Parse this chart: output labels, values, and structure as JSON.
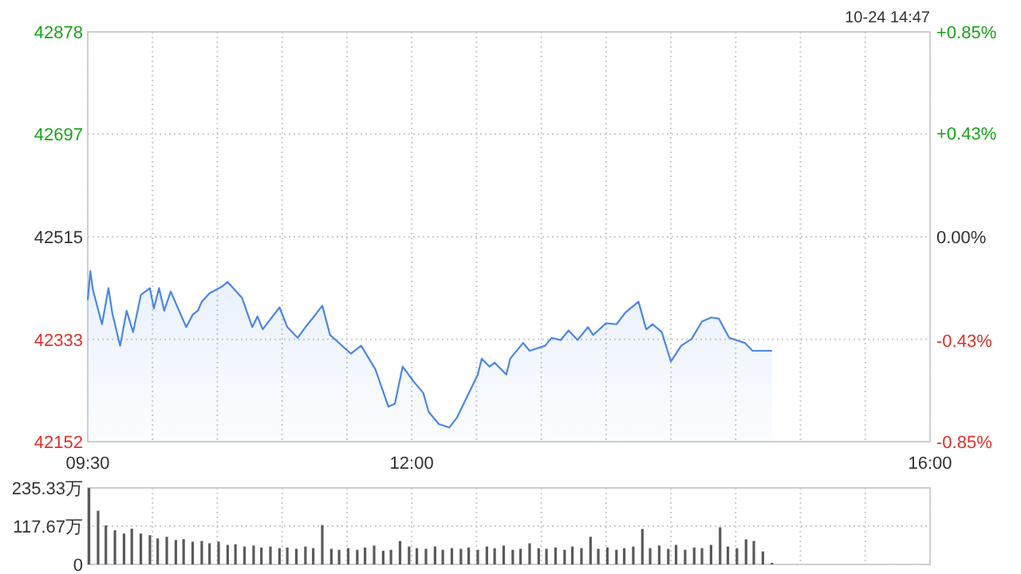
{
  "chart_data": [
    {
      "type": "area",
      "annotations": [
        "10-24 14:47"
      ],
      "series": [
        {
          "color": "#4a86e8",
          "x": [
            9.5,
            9.52,
            9.54,
            9.61,
            9.66,
            9.69,
            9.75,
            9.8,
            9.85,
            9.91,
            9.98,
            10.01,
            10.05,
            10.09,
            10.14,
            10.26,
            10.31,
            10.35,
            10.38,
            10.44,
            10.53,
            10.58,
            10.69,
            10.77,
            10.81,
            10.85,
            10.98,
            11.04,
            11.12,
            11.18,
            11.24,
            11.31,
            11.37,
            11.53,
            11.61,
            11.72,
            11.82,
            11.87,
            11.93,
            12.02,
            12.09,
            12.13,
            12.21,
            12.29,
            12.35,
            12.43,
            12.51,
            12.54,
            12.6,
            12.64,
            12.73,
            12.76,
            12.86,
            12.91,
            13.03,
            13.08,
            13.15,
            13.21,
            13.28,
            13.36,
            13.4,
            13.5,
            13.58,
            13.65,
            13.75,
            13.81,
            13.86,
            13.93,
            14.0,
            14.08,
            14.16,
            14.24,
            14.31,
            14.37,
            14.45,
            14.57,
            14.63,
            14.78
          ],
          "values": [
            42403,
            42454,
            42421,
            42360,
            42424,
            42379,
            42322,
            42384,
            42346,
            42412,
            42424,
            42388,
            42424,
            42384,
            42418,
            42355,
            42377,
            42384,
            42400,
            42415,
            42426,
            42435,
            42407,
            42355,
            42374,
            42351,
            42390,
            42355,
            42336,
            42355,
            42372,
            42393,
            42341,
            42308,
            42322,
            42280,
            42214,
            42219,
            42285,
            42257,
            42238,
            42205,
            42183,
            42177,
            42195,
            42233,
            42271,
            42299,
            42285,
            42292,
            42271,
            42299,
            42327,
            42313,
            42322,
            42336,
            42332,
            42349,
            42332,
            42355,
            42341,
            42362,
            42360,
            42381,
            42400,
            42351,
            42360,
            42346,
            42294,
            42322,
            42334,
            42365,
            42372,
            42370,
            42336,
            42327,
            42313,
            42313
          ]
        }
      ],
      "xlim": [
        9.5,
        16
      ],
      "xticks": [
        {
          "value": 9.5,
          "label": "09:30"
        },
        {
          "value": 10,
          "label": null
        },
        {
          "value": 10.5,
          "label": null
        },
        {
          "value": 11,
          "label": null
        },
        {
          "value": 11.5,
          "label": null
        },
        {
          "value": 12,
          "label": "12:00"
        },
        {
          "value": 12.5,
          "label": null
        },
        {
          "value": 13,
          "label": null
        },
        {
          "value": 13.5,
          "label": null
        },
        {
          "value": 14,
          "label": null
        },
        {
          "value": 14.5,
          "label": null
        },
        {
          "value": 15,
          "label": null
        },
        {
          "value": 15.5,
          "label": null
        },
        {
          "value": 16,
          "label": "16:00"
        }
      ],
      "ylim": [
        42152,
        42878
      ],
      "yticks": [
        42152,
        42333,
        42515,
        42697,
        42878
      ],
      "y2lim": [
        -0.85,
        0.85
      ],
      "y2ticks": [
        {
          "value": -0.85,
          "label": "-0.85%"
        },
        {
          "value": -0.43,
          "label": "-0.43%"
        },
        {
          "value": 0,
          "label": "0.00%"
        },
        {
          "value": 0.43,
          "label": "+0.43%"
        },
        {
          "value": 0.85,
          "label": "+0.85%"
        }
      ],
      "grid": true
    },
    {
      "type": "bar",
      "tick_labels": "y",
      "x": [
        9.5,
        9.57,
        9.63,
        9.7,
        9.77,
        9.83,
        9.9,
        9.97,
        10.03,
        10.1,
        10.17,
        10.23,
        10.3,
        10.37,
        10.43,
        10.5,
        10.57,
        10.63,
        10.7,
        10.77,
        10.83,
        10.9,
        10.97,
        11.03,
        11.1,
        11.17,
        11.23,
        11.3,
        11.37,
        11.43,
        11.5,
        11.57,
        11.63,
        11.7,
        11.77,
        11.83,
        11.9,
        11.97,
        12.03,
        12.1,
        12.17,
        12.23,
        12.3,
        12.37,
        12.43,
        12.5,
        12.57,
        12.63,
        12.7,
        12.77,
        12.83,
        12.9,
        12.97,
        13.03,
        13.1,
        13.17,
        13.23,
        13.3,
        13.37,
        13.43,
        13.5,
        13.57,
        13.63,
        13.7,
        13.77,
        13.83,
        13.9,
        13.97,
        14.03,
        14.1,
        14.17,
        14.23,
        14.3,
        14.37,
        14.43,
        14.5,
        14.57,
        14.63,
        14.7,
        14.77
      ],
      "values": [
        235,
        165,
        120,
        105,
        95,
        110,
        95,
        90,
        80,
        85,
        75,
        78,
        70,
        72,
        65,
        70,
        60,
        62,
        55,
        58,
        52,
        55,
        50,
        52,
        48,
        55,
        50,
        121,
        48,
        45,
        50,
        45,
        52,
        58,
        42,
        45,
        72,
        55,
        50,
        48,
        55,
        45,
        50,
        48,
        52,
        45,
        55,
        50,
        58,
        45,
        48,
        65,
        50,
        48,
        52,
        45,
        55,
        50,
        85,
        48,
        52,
        45,
        50,
        55,
        109,
        50,
        58,
        48,
        60,
        45,
        52,
        50,
        60,
        114,
        55,
        50,
        77,
        72,
        40,
        5
      ],
      "color": "#5a5a5a",
      "xlim": [
        9.5,
        16
      ],
      "xticks": [
        {
          "value": 9.5,
          "label": null
        },
        {
          "value": 10,
          "label": null
        },
        {
          "value": 10.5,
          "label": null
        },
        {
          "value": 11,
          "label": null
        },
        {
          "value": 11.5,
          "label": null
        },
        {
          "value": 12,
          "label": null
        },
        {
          "value": 12.5,
          "label": null
        },
        {
          "value": 13,
          "label": null
        },
        {
          "value": 13.5,
          "label": null
        },
        {
          "value": 14,
          "label": null
        },
        {
          "value": 14.5,
          "label": null
        },
        {
          "value": 15,
          "label": null
        },
        {
          "value": 15.5,
          "label": null
        },
        {
          "value": 16,
          "label": null
        }
      ],
      "ylim": [
        0,
        235.33
      ],
      "yticks": [
        0,
        {
          "value": 117.67,
          "label": "117.67万"
        },
        {
          "value": 235.33,
          "label": "235.33万"
        }
      ],
      "grid": true
    }
  ]
}
